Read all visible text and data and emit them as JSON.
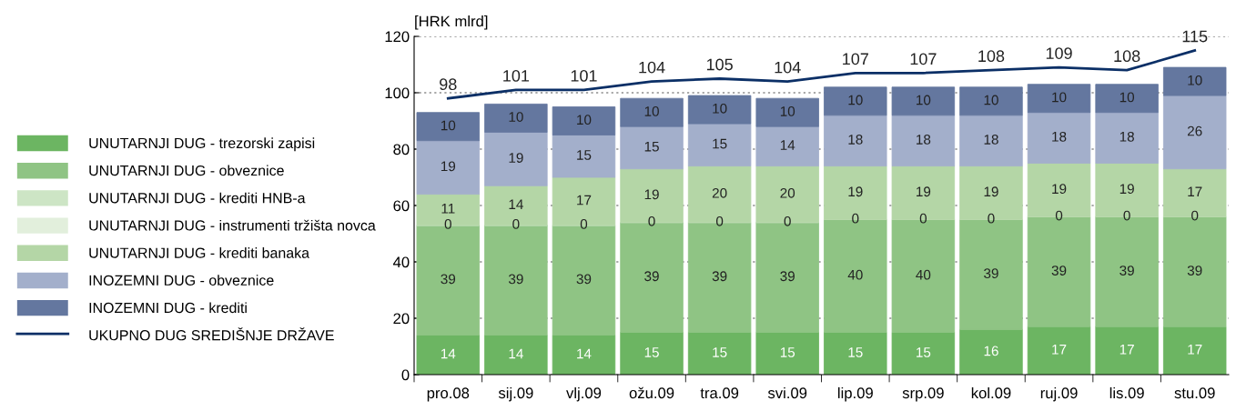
{
  "chart_data": {
    "type": "bar",
    "stacked": true,
    "ylabel": "[HRK mlrd]",
    "categories": [
      "pro.08",
      "sij.09",
      "vlj.09",
      "ožu.09",
      "tra.09",
      "svi.09",
      "lip.09",
      "srp.09",
      "kol.09",
      "ruj.09",
      "lis.09",
      "stu.09"
    ],
    "ylim": [
      0,
      120
    ],
    "yticks": [
      0,
      20,
      40,
      60,
      80,
      100,
      120
    ],
    "grid": "y",
    "legend": "left",
    "series": [
      {
        "name": "UNUTARNJI DUG - trezorski zapisi",
        "color": "#6cb562",
        "values": [
          14,
          14,
          14,
          15,
          15,
          15,
          15,
          15,
          16,
          17,
          17,
          17
        ],
        "value_labels": [
          "14",
          "14",
          "14",
          "15",
          "15",
          "15",
          "15",
          "15",
          "16",
          "17",
          "17",
          "17"
        ]
      },
      {
        "name": "UNUTARNJI DUG - obveznice",
        "color": "#8fc484",
        "values": [
          39,
          39,
          39,
          39,
          39,
          39,
          40,
          40,
          39,
          39,
          39,
          39
        ],
        "value_labels": [
          "39",
          "39",
          "39",
          "39",
          "39",
          "39",
          "40",
          "40",
          "39",
          "39",
          "39",
          "39"
        ]
      },
      {
        "name": "UNUTARNJI DUG - krediti HNB-a",
        "color": "#cde5c5",
        "values": [
          0,
          0,
          0,
          0,
          0,
          0,
          0,
          0,
          0,
          0,
          0,
          0
        ],
        "value_labels": [
          "0",
          "0",
          "0",
          "0",
          "0",
          "0",
          "0",
          "0",
          "0",
          "0",
          "0",
          "0"
        ]
      },
      {
        "name": "UNUTARNJI DUG - instrumenti tržišta novca",
        "color": "#e2efdc",
        "values": [
          0,
          0,
          0,
          0,
          0,
          0,
          0,
          0,
          0,
          0,
          0,
          0
        ]
      },
      {
        "name": "UNUTARNJI DUG - krediti banaka",
        "color": "#b4d6a6",
        "values": [
          11,
          14,
          17,
          19,
          20,
          20,
          19,
          19,
          19,
          19,
          19,
          17
        ],
        "value_labels": [
          "11",
          "14",
          "17",
          "19",
          "20",
          "20",
          "19",
          "19",
          "19",
          "19",
          "19",
          "17"
        ]
      },
      {
        "name": "INOZEMNI DUG - obveznice",
        "color": "#a3afcb",
        "values": [
          19,
          19,
          15,
          15,
          15,
          14,
          18,
          18,
          18,
          18,
          18,
          26
        ],
        "value_labels": [
          "19",
          "19",
          "15",
          "15",
          "15",
          "14",
          "18",
          "18",
          "18",
          "18",
          "18",
          "26"
        ]
      },
      {
        "name": "INOZEMNI DUG - krediti",
        "color": "#64779f",
        "values": [
          10,
          10,
          10,
          10,
          10,
          10,
          10,
          10,
          10,
          10,
          10,
          10
        ],
        "value_labels": [
          "10",
          "10",
          "10",
          "10",
          "10",
          "10",
          "10",
          "10",
          "10",
          "10",
          "10",
          "10"
        ]
      },
      {
        "name": "UKUPNO DUG SREDIŠNJE DRŽAVE",
        "type": "line",
        "color": "#0b2f66",
        "values": [
          98,
          101,
          101,
          104,
          105,
          104,
          107,
          107,
          108,
          109,
          108,
          115
        ],
        "value_labels": [
          "98",
          "101",
          "101",
          "104",
          "105",
          "104",
          "107",
          "107",
          "108",
          "109",
          "108",
          "115"
        ]
      }
    ]
  }
}
